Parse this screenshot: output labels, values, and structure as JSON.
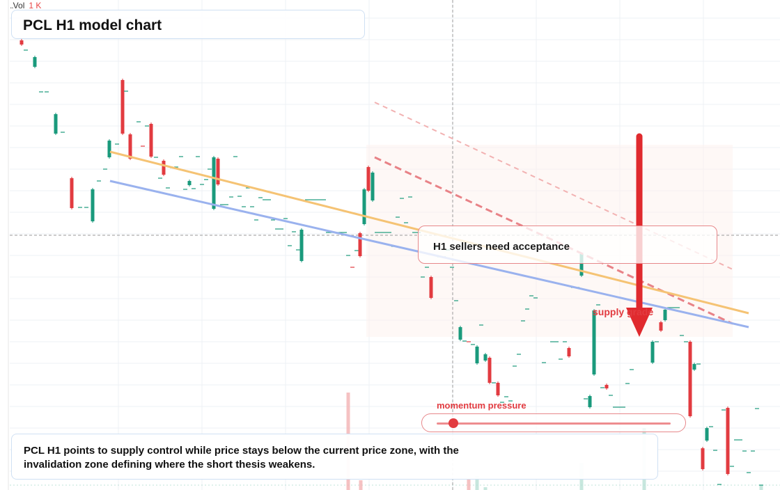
{
  "volume": {
    "label": "Vol",
    "value": "1 K"
  },
  "title": "PCL H1 model chart",
  "callout": "H1 sellers need acceptance",
  "supply_label": "supply grade",
  "momentum": {
    "label": "momentum pressure",
    "level": 0.07
  },
  "note": "PCL H1 points to supply control while price stays below the current price zone, with the invalidation zone defining where the short thesis weakens.",
  "colors": {
    "up": "#1a9a7c",
    "down": "#e23b40",
    "orange_line": "#f5c374",
    "blue_line": "#9ab2ee",
    "dashed_dark": "#e88287",
    "dashed_light": "#f2b6b6",
    "arrow": "#e02a2e",
    "grid": "#eef0f4",
    "crosshair": "#9a9a9a"
  },
  "chart_data": {
    "type": "candlestick",
    "title": "PCL H1 model chart",
    "candle_count": 88,
    "up_color": "#1a9a7c",
    "down_color": "#e23b40",
    "overlays": [
      {
        "name": "",
        "kind": "trend-line",
        "color": "#f5c374",
        "direction": "descending"
      },
      {
        "name": "",
        "kind": "trend-line",
        "color": "#9ab2ee",
        "direction": "descending"
      },
      {
        "name": "",
        "kind": "dashed-channel",
        "color": "#e88287",
        "direction": "descending"
      }
    ],
    "annotations": [
      "H1 sellers need acceptance",
      "supply grade",
      "momentum pressure"
    ],
    "signal": "downward arrow (short)"
  }
}
